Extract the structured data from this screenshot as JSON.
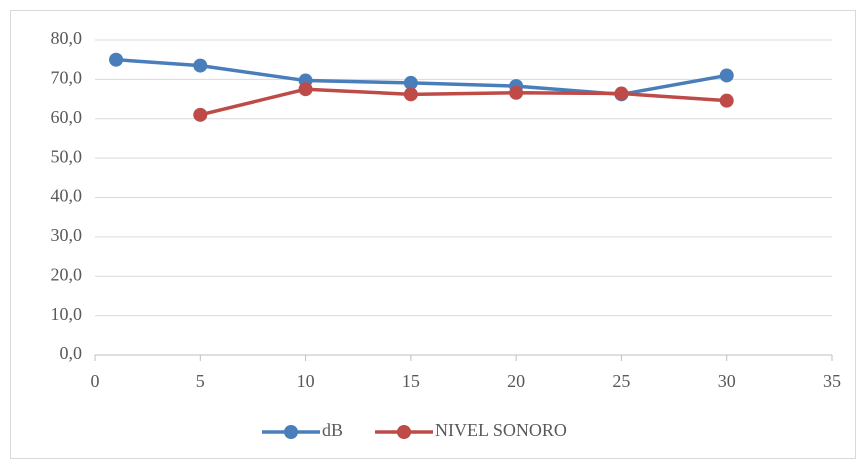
{
  "chart_data": {
    "type": "line",
    "x": [
      1,
      5,
      10,
      15,
      20,
      25,
      30
    ],
    "series": [
      {
        "name": "dB",
        "color": "#4a7ebb",
        "values": [
          75.0,
          73.5,
          69.7,
          69.1,
          68.3,
          66.2,
          71.0
        ]
      },
      {
        "name": "NIVEL SONORO",
        "color": "#be4b48",
        "values": [
          null,
          61.0,
          67.5,
          66.2,
          66.6,
          66.4,
          64.6
        ]
      }
    ],
    "xlim": [
      0,
      35
    ],
    "xticks": [
      0,
      5,
      10,
      15,
      20,
      25,
      30,
      35
    ],
    "ylim": [
      0,
      80
    ],
    "yticks": [
      {
        "value": 0,
        "label": "0,0"
      },
      {
        "value": 10,
        "label": "10,0"
      },
      {
        "value": 20,
        "label": "20,0"
      },
      {
        "value": 30,
        "label": "30,0"
      },
      {
        "value": 40,
        "label": "40,0"
      },
      {
        "value": 50,
        "label": "50,0"
      },
      {
        "value": 60,
        "label": "60,0"
      },
      {
        "value": 70,
        "label": "70,0"
      },
      {
        "value": 80,
        "label": "80,0"
      }
    ],
    "grid": true,
    "legend": "bottom"
  }
}
